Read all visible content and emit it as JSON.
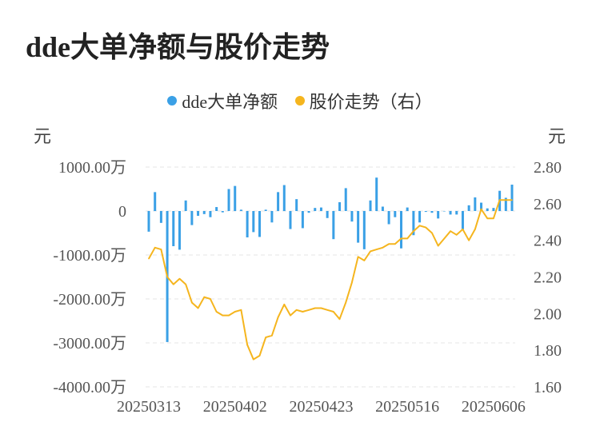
{
  "chart_data": {
    "type": "bar+line",
    "title": "dde大单净额与股价走势",
    "legend": {
      "placement": "top-center",
      "items": [
        {
          "label": "dde大单净额",
          "color": "#3aa0e6"
        },
        {
          "label": "股价走势（右）",
          "color": "#f5b51e"
        }
      ]
    },
    "y_left": {
      "unit": "元",
      "ylim": [
        -4000,
        1000
      ],
      "ticks": [
        1000,
        0,
        -1000,
        -2000,
        -3000,
        -4000
      ],
      "tick_labels": [
        "1000.00万",
        "0",
        "-1000.00万",
        "-2000.00万",
        "-3000.00万",
        "-4000.00万"
      ]
    },
    "y_right": {
      "unit": "元",
      "ylim": [
        1.6,
        2.8
      ],
      "tick_labels": [
        "2.80",
        "2.60",
        "2.40",
        "2.20",
        "2.00",
        "1.80",
        "1.60"
      ]
    },
    "x_tick_labels": [
      "20250313",
      "20250402",
      "20250423",
      "20250516",
      "20250606"
    ],
    "x_tick_indices": [
      0,
      14,
      28,
      42,
      56
    ],
    "grid": "horizontal dashed",
    "series": [
      {
        "name": "dde大单净额",
        "kind": "bar",
        "color": "#3aa0e6",
        "values": [
          -470,
          430,
          -270,
          -2980,
          -800,
          -880,
          240,
          -320,
          -110,
          -70,
          -140,
          90,
          -30,
          500,
          570,
          30,
          -600,
          -480,
          -590,
          30,
          -260,
          430,
          590,
          -410,
          270,
          -390,
          -40,
          70,
          80,
          -160,
          -640,
          200,
          520,
          -240,
          -720,
          -870,
          240,
          760,
          100,
          -300,
          -140,
          -850,
          80,
          -550,
          -260,
          -20,
          -40,
          -170,
          0,
          -80,
          -80,
          -420,
          130,
          310,
          190,
          60,
          70,
          460,
          300,
          600
        ]
      },
      {
        "name": "股价走势（右）",
        "kind": "line",
        "axis": "right",
        "color": "#f5b51e",
        "values": [
          2.3,
          2.36,
          2.35,
          2.2,
          2.16,
          2.19,
          2.16,
          2.06,
          2.03,
          2.09,
          2.08,
          2.01,
          1.99,
          1.99,
          2.01,
          2.02,
          1.83,
          1.75,
          1.77,
          1.87,
          1.88,
          1.98,
          2.05,
          1.99,
          2.02,
          2.01,
          2.02,
          2.03,
          2.03,
          2.02,
          2.01,
          1.97,
          2.06,
          2.17,
          2.31,
          2.29,
          2.34,
          2.35,
          2.36,
          2.38,
          2.38,
          2.41,
          2.41,
          2.45,
          2.48,
          2.47,
          2.44,
          2.37,
          2.41,
          2.45,
          2.43,
          2.46,
          2.4,
          2.46,
          2.57,
          2.52,
          2.52,
          2.62,
          2.62,
          2.62
        ]
      }
    ]
  }
}
